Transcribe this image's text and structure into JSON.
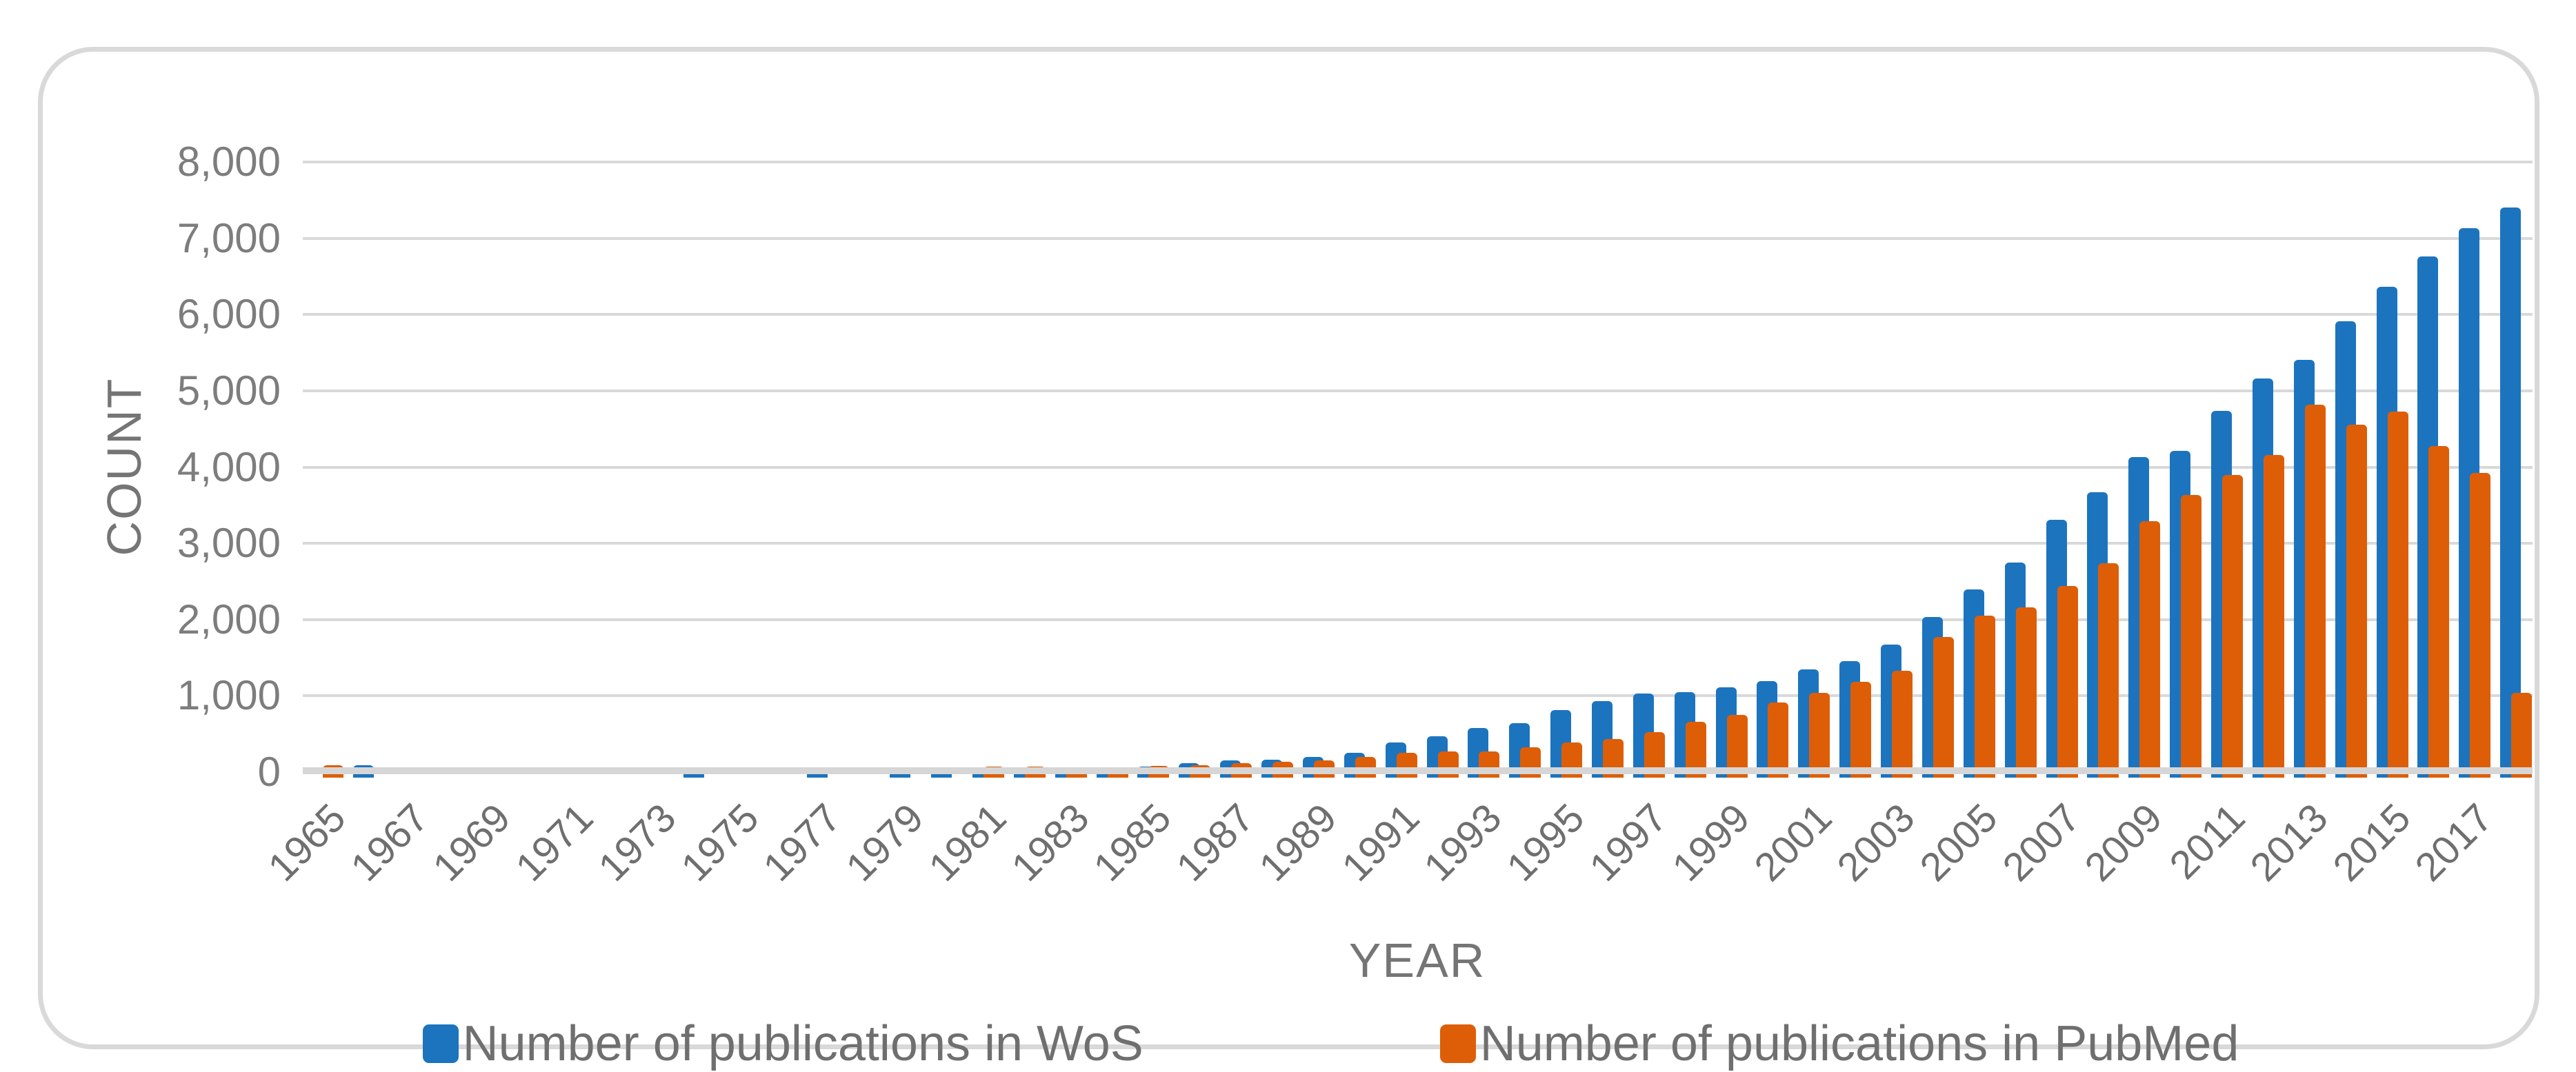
{
  "figure": {
    "kind": "clustered-bar-chart",
    "background_color": "#ffffff",
    "border_color": "#d9d9d9"
  },
  "y_axis": {
    "title": "COUNT",
    "min": 0,
    "max": 8000,
    "step": 1000,
    "tick_labels": [
      "0",
      "1,000",
      "2,000",
      "3,000",
      "4,000",
      "5,000",
      "6,000",
      "7,000",
      "8,000"
    ]
  },
  "x_axis": {
    "title": "YEAR",
    "tick_labels": [
      "1965",
      "1967",
      "1969",
      "1971",
      "1973",
      "1975",
      "1977",
      "1979",
      "1981",
      "1983",
      "1985",
      "1987",
      "1989",
      "1991",
      "1993",
      "1995",
      "1997",
      "1999",
      "2001",
      "2003",
      "2005",
      "2007",
      "2009",
      "2011",
      "2013",
      "2015",
      "2017"
    ]
  },
  "legend": {
    "items": [
      {
        "label": "Number of publications in WoS",
        "color": "#1c74be"
      },
      {
        "label": "Number of publications in PubMed",
        "color": "#dd5e07"
      }
    ]
  },
  "chart_data": {
    "type": "bar",
    "title": "",
    "xlabel": "YEAR",
    "ylabel": "COUNT",
    "ylim": [
      0,
      8000
    ],
    "ytick_step": 1000,
    "grid": true,
    "legend_position": "bottom",
    "x": [
      1965,
      1966,
      1967,
      1968,
      1969,
      1970,
      1971,
      1972,
      1973,
      1974,
      1975,
      1976,
      1977,
      1978,
      1979,
      1980,
      1981,
      1982,
      1983,
      1984,
      1985,
      1986,
      1987,
      1988,
      1989,
      1990,
      1991,
      1992,
      1993,
      1994,
      1995,
      1996,
      1997,
      1998,
      1999,
      2000,
      2001,
      2002,
      2003,
      2004,
      2005,
      2006,
      2007,
      2008,
      2009,
      2010,
      2011,
      2012,
      2013,
      2014,
      2015,
      2016,
      2017,
      2018
    ],
    "series": [
      {
        "name": "Number of publications in WoS",
        "color": "#1c74be",
        "values": [
          0,
          90,
          0,
          0,
          0,
          0,
          0,
          0,
          0,
          60,
          0,
          0,
          60,
          0,
          60,
          60,
          55,
          55,
          45,
          50,
          70,
          120,
          150,
          160,
          200,
          250,
          390,
          470,
          580,
          640,
          810,
          930,
          1030,
          1050,
          1110,
          1190,
          1350,
          1460,
          1670,
          2030,
          2400,
          2750,
          3310,
          3670,
          4130,
          4210,
          4740,
          5160,
          5410,
          5910,
          6360,
          6760,
          7130,
          7400
        ]
      },
      {
        "name": "Number of publications in PubMed",
        "color": "#dd5e07",
        "values": [
          90,
          0,
          0,
          0,
          0,
          0,
          0,
          0,
          0,
          0,
          0,
          0,
          0,
          0,
          0,
          0,
          70,
          70,
          60,
          60,
          85,
          90,
          115,
          135,
          155,
          200,
          255,
          270,
          275,
          330,
          390,
          430,
          520,
          660,
          750,
          910,
          1040,
          1180,
          1330,
          1770,
          2050,
          2160,
          2440,
          2740,
          3290,
          3630,
          3900,
          4160,
          4820,
          4560,
          4730,
          4280,
          3920,
          1040
        ]
      }
    ]
  }
}
